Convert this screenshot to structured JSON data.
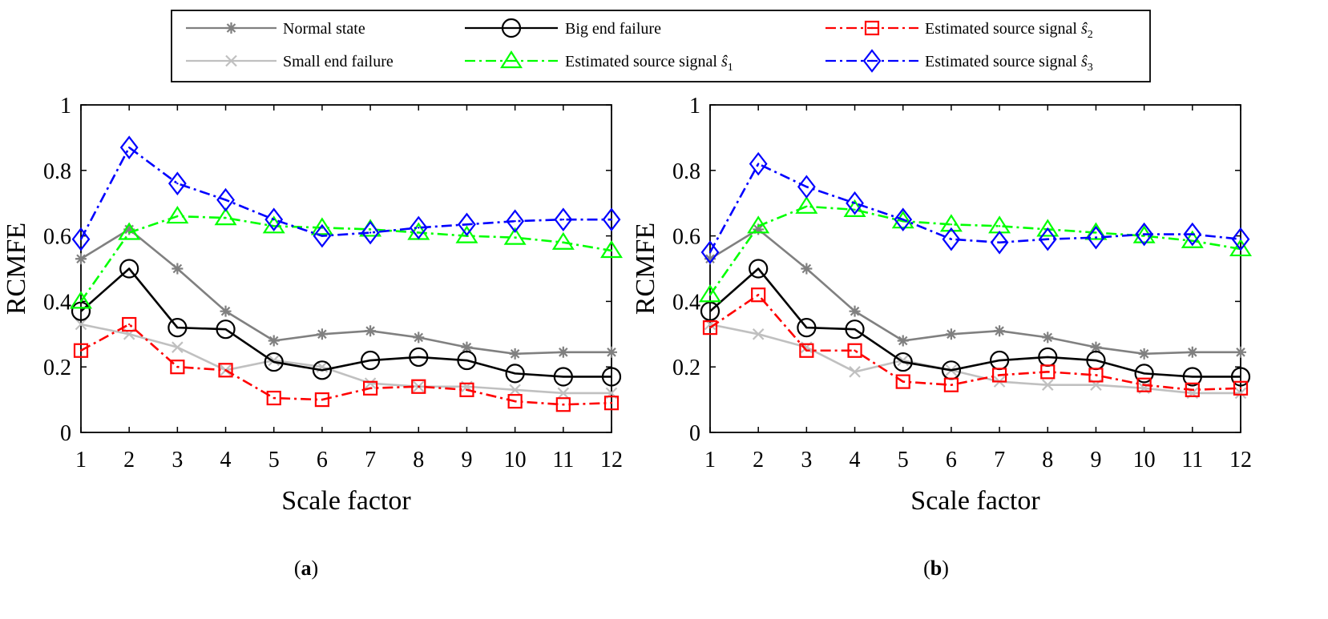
{
  "legend": [
    {
      "key": "normal",
      "label": "Normal state",
      "color": "#808080",
      "marker": "asterisk",
      "dash": "solid"
    },
    {
      "key": "small",
      "label": "Small end failure",
      "color": "#c0c0c0",
      "marker": "x",
      "dash": "solid"
    },
    {
      "key": "big",
      "label": "Big end failure",
      "color": "#000000",
      "marker": "circle",
      "dash": "solid"
    },
    {
      "key": "s1",
      "label": "Estimated source signal",
      "sub": "1",
      "color": "#00ff00",
      "marker": "triangle",
      "dash": "dashdot"
    },
    {
      "key": "s2",
      "label": "Estimated source signal",
      "sub": "2",
      "color": "#ff0000",
      "marker": "square",
      "dash": "dashdot"
    },
    {
      "key": "s3",
      "label": "Estimated source signal",
      "sub": "3",
      "color": "#0000ff",
      "marker": "diamond",
      "dash": "dashdot"
    }
  ],
  "chart_data": [
    {
      "type": "line",
      "panel_label": "a",
      "xlabel": "Scale factor",
      "ylabel": "RCMFE",
      "x": [
        1,
        2,
        3,
        4,
        5,
        6,
        7,
        8,
        9,
        10,
        11,
        12
      ],
      "xlim": [
        1,
        12
      ],
      "ylim": [
        0,
        1
      ],
      "yticks": [
        "0",
        "0.2",
        "0.4",
        "0.6",
        "0.8",
        "1"
      ],
      "series": [
        {
          "key": "small",
          "name": "Small end failure",
          "values": [
            0.33,
            0.3,
            0.26,
            0.19,
            0.22,
            0.2,
            0.15,
            0.14,
            0.14,
            0.13,
            0.12,
            0.12
          ]
        },
        {
          "key": "normal",
          "name": "Normal state",
          "values": [
            0.53,
            0.62,
            0.5,
            0.37,
            0.28,
            0.3,
            0.31,
            0.29,
            0.26,
            0.24,
            0.245,
            0.245
          ]
        },
        {
          "key": "big",
          "name": "Big end failure",
          "values": [
            0.37,
            0.5,
            0.32,
            0.315,
            0.215,
            0.19,
            0.22,
            0.23,
            0.22,
            0.18,
            0.17,
            0.17
          ]
        },
        {
          "key": "s2",
          "name": "Estimated source signal ŝ2",
          "values": [
            0.25,
            0.33,
            0.2,
            0.19,
            0.105,
            0.1,
            0.135,
            0.14,
            0.13,
            0.095,
            0.085,
            0.09
          ]
        },
        {
          "key": "s1",
          "name": "Estimated source signal ŝ1",
          "values": [
            0.4,
            0.61,
            0.66,
            0.655,
            0.63,
            0.625,
            0.62,
            0.61,
            0.6,
            0.595,
            0.58,
            0.555
          ]
        },
        {
          "key": "s3",
          "name": "Estimated source signal ŝ3",
          "values": [
            0.59,
            0.87,
            0.76,
            0.71,
            0.65,
            0.6,
            0.61,
            0.625,
            0.635,
            0.645,
            0.65,
            0.65
          ]
        }
      ]
    },
    {
      "type": "line",
      "panel_label": "b",
      "xlabel": "Scale factor",
      "ylabel": "RCMFE",
      "x": [
        1,
        2,
        3,
        4,
        5,
        6,
        7,
        8,
        9,
        10,
        11,
        12
      ],
      "xlim": [
        1,
        12
      ],
      "ylim": [
        0,
        1
      ],
      "yticks": [
        "0",
        "0.2",
        "0.4",
        "0.6",
        "0.8",
        "1"
      ],
      "series": [
        {
          "key": "small",
          "name": "Small end failure",
          "values": [
            0.33,
            0.3,
            0.26,
            0.185,
            0.22,
            0.19,
            0.155,
            0.145,
            0.145,
            0.135,
            0.12,
            0.12
          ]
        },
        {
          "key": "normal",
          "name": "Normal state",
          "values": [
            0.53,
            0.62,
            0.5,
            0.37,
            0.28,
            0.3,
            0.31,
            0.29,
            0.26,
            0.24,
            0.245,
            0.245
          ]
        },
        {
          "key": "big",
          "name": "Big end failure",
          "values": [
            0.37,
            0.5,
            0.32,
            0.315,
            0.215,
            0.19,
            0.22,
            0.23,
            0.22,
            0.18,
            0.17,
            0.17
          ]
        },
        {
          "key": "s2",
          "name": "Estimated source signal ŝ2",
          "values": [
            0.32,
            0.42,
            0.25,
            0.25,
            0.155,
            0.145,
            0.175,
            0.185,
            0.175,
            0.145,
            0.13,
            0.135
          ]
        },
        {
          "key": "s1",
          "name": "Estimated source signal ŝ1",
          "values": [
            0.42,
            0.63,
            0.69,
            0.68,
            0.645,
            0.635,
            0.63,
            0.62,
            0.61,
            0.6,
            0.585,
            0.56
          ]
        },
        {
          "key": "s3",
          "name": "Estimated source signal ŝ3",
          "values": [
            0.55,
            0.82,
            0.75,
            0.7,
            0.65,
            0.59,
            0.58,
            0.59,
            0.595,
            0.605,
            0.605,
            0.59
          ]
        }
      ]
    }
  ]
}
